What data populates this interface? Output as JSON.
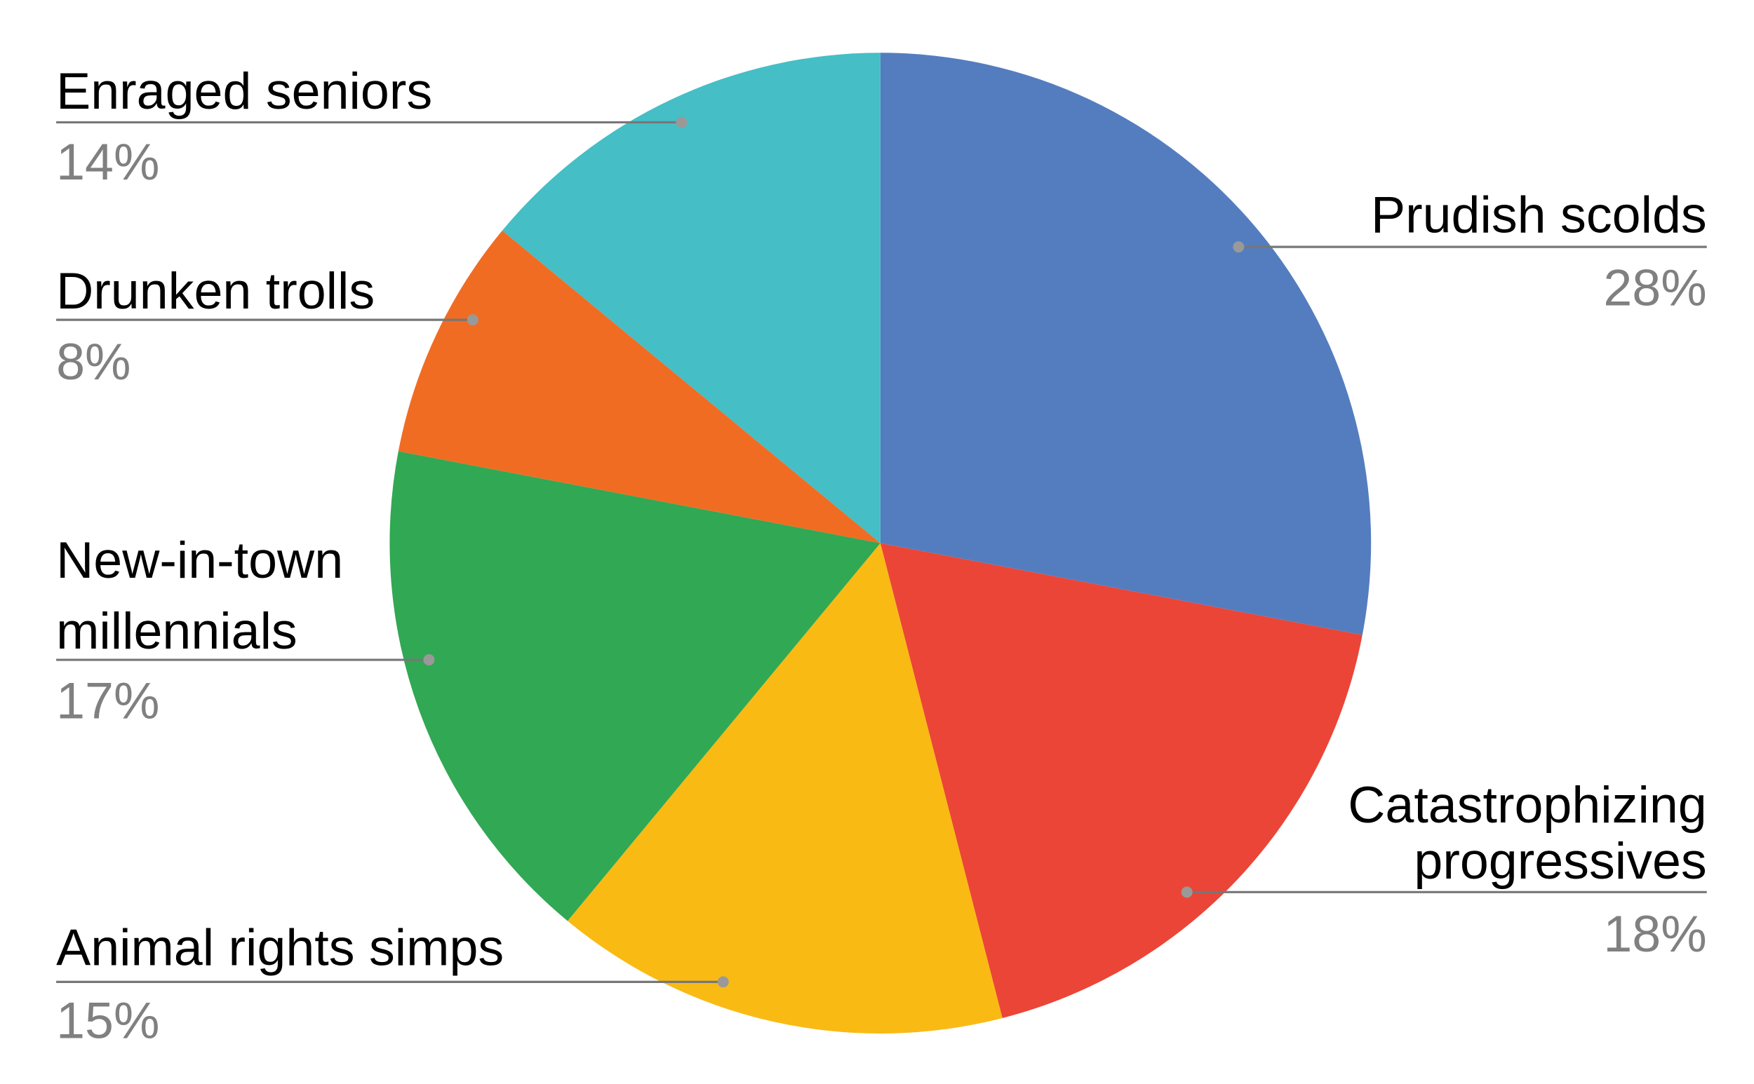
{
  "chart_data": {
    "type": "pie",
    "start": "top",
    "direction": "clockwise",
    "legend": "none",
    "slices": [
      {
        "label": [
          "Prudish scolds"
        ],
        "value": 28,
        "pct_label": "28%",
        "color": "#547DBF",
        "side": "right"
      },
      {
        "label": [
          "Catastrophizing",
          "progressives"
        ],
        "value": 18,
        "pct_label": "18%",
        "color": "#EB4537",
        "side": "right"
      },
      {
        "label": [
          "Animal rights simps"
        ],
        "value": 15,
        "pct_label": "15%",
        "color": "#F9BA14",
        "side": "left"
      },
      {
        "label": [
          "New-in-town",
          "millennials"
        ],
        "value": 17,
        "pct_label": "17%",
        "color": "#31A853",
        "side": "left"
      },
      {
        "label": [
          "Drunken trolls"
        ],
        "value": 8,
        "pct_label": "8%",
        "color": "#F06C22",
        "side": "left"
      },
      {
        "label": [
          "Enraged seniors"
        ],
        "value": 14,
        "pct_label": "14%",
        "color": "#45BEC6",
        "side": "left"
      }
    ]
  }
}
